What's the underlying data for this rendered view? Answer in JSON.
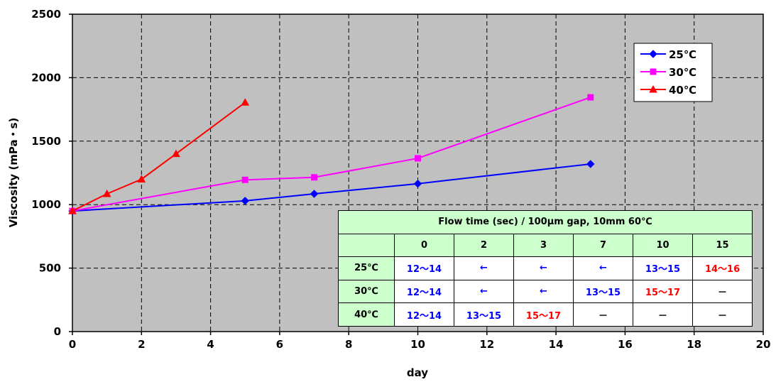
{
  "chart_data": {
    "type": "line",
    "xlabel": "day",
    "ylabel": "Viscosity (mPa・s)",
    "xlim": [
      0,
      20
    ],
    "ylim": [
      0,
      2500
    ],
    "xticks": [
      0,
      2,
      4,
      6,
      8,
      10,
      12,
      14,
      16,
      18,
      20
    ],
    "yticks": [
      0,
      500,
      1000,
      1500,
      2000,
      2500
    ],
    "grid": true,
    "legend_position": "top-right",
    "series": [
      {
        "name": "25℃",
        "color": "#0000ff",
        "marker": "diamond",
        "x": [
          0,
          5,
          7,
          10,
          15
        ],
        "y": [
          950,
          1030,
          1085,
          1165,
          1320
        ]
      },
      {
        "name": "30℃",
        "color": "#ff00ff",
        "marker": "square",
        "x": [
          0,
          5,
          7,
          10,
          15
        ],
        "y": [
          950,
          1195,
          1215,
          1365,
          1845
        ]
      },
      {
        "name": "40℃",
        "color": "#ff0000",
        "marker": "triangle",
        "x": [
          0,
          1,
          2,
          3,
          5
        ],
        "y": [
          950,
          1085,
          1200,
          1400,
          1805
        ]
      }
    ]
  },
  "table": {
    "title": "Flow time (sec) / 100μm gap, 10mm 60℃",
    "header": [
      "",
      "0",
      "2",
      "3",
      "7",
      "10",
      "15"
    ],
    "rows": [
      {
        "label": "25℃",
        "cells": [
          {
            "text": "12～14",
            "color": "#0000ff"
          },
          {
            "text": "←",
            "color": "#0000ff"
          },
          {
            "text": "←",
            "color": "#0000ff"
          },
          {
            "text": "←",
            "color": "#0000ff"
          },
          {
            "text": "13～15",
            "color": "#0000ff"
          },
          {
            "text": "14～16",
            "color": "#ff0000"
          }
        ]
      },
      {
        "label": "30℃",
        "cells": [
          {
            "text": "12～14",
            "color": "#0000ff"
          },
          {
            "text": "←",
            "color": "#0000ff"
          },
          {
            "text": "←",
            "color": "#0000ff"
          },
          {
            "text": "13～15",
            "color": "#0000ff"
          },
          {
            "text": "15～17",
            "color": "#ff0000"
          },
          {
            "text": "－",
            "color": "#000000"
          }
        ]
      },
      {
        "label": "40℃",
        "cells": [
          {
            "text": "12～14",
            "color": "#0000ff"
          },
          {
            "text": "13～15",
            "color": "#0000ff"
          },
          {
            "text": "15～17",
            "color": "#ff0000"
          },
          {
            "text": "－",
            "color": "#000000"
          },
          {
            "text": "－",
            "color": "#000000"
          },
          {
            "text": "－",
            "color": "#000000"
          }
        ]
      }
    ]
  },
  "colors": {
    "plot_background": "#c0c0c0",
    "table_header": "#ccffcc"
  }
}
